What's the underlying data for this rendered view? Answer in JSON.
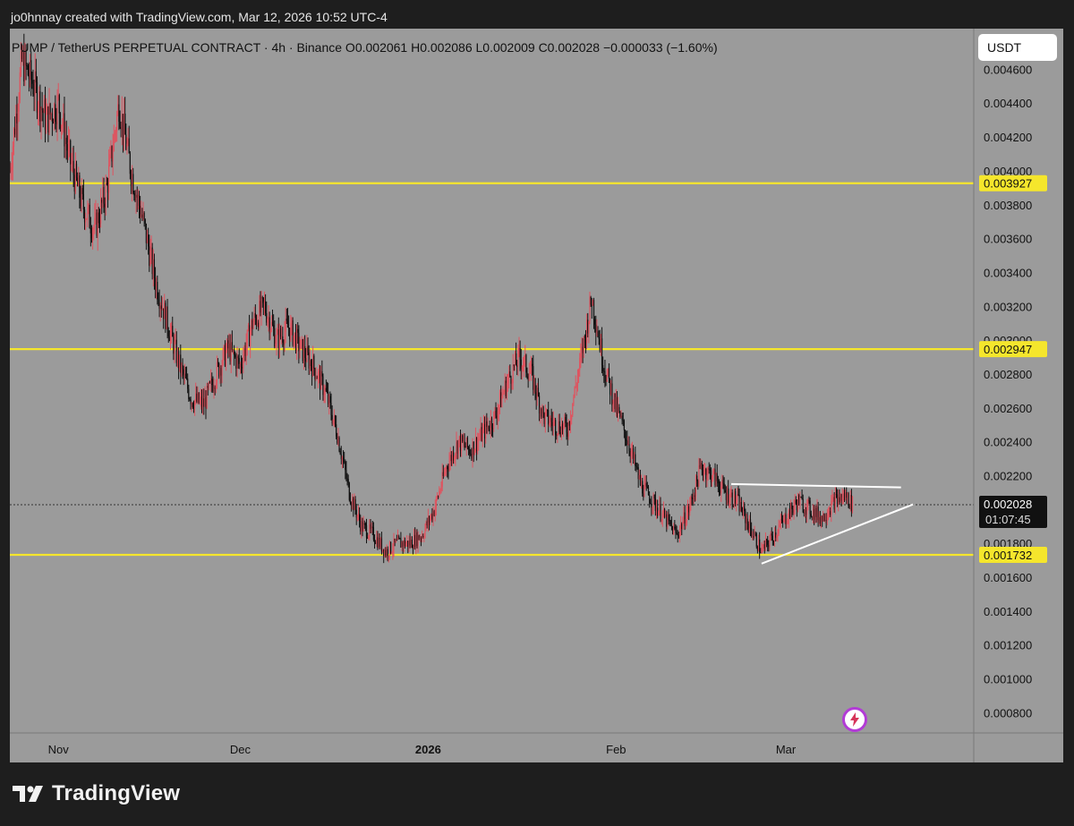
{
  "header": {
    "text": "jo0hnnay created with TradingView.com, Mar 12, 2026 10:52 UTC-4"
  },
  "symbol_info": {
    "text": "PUMP / TetherUS PERPETUAL CONTRACT · 4h · Binance  O0.002061  H0.002086  L0.002009  C0.002028  −0.000033 (−1.60%)"
  },
  "currency": "USDT",
  "footer": {
    "brand": "TradingView"
  },
  "colors": {
    "background": "#9b9b9b",
    "bull": "#e0525e",
    "bear": "#111111",
    "level": "#f5e62c",
    "trendline": "#ffffff"
  },
  "icons": {
    "bolt": "bolt-icon",
    "logo": "tradingview-logo-icon"
  },
  "chart_data": {
    "type": "candlestick",
    "timeframe": "4h",
    "y_tick_labels": [
      "0.004600",
      "0.004400",
      "0.004200",
      "0.004000",
      "0.003800",
      "0.003600",
      "0.003400",
      "0.003200",
      "0.003000",
      "0.002800",
      "0.002600",
      "0.002400",
      "0.002200",
      "0.001800",
      "0.001600",
      "0.001400",
      "0.001200",
      "0.001000",
      "0.000800"
    ],
    "ylim": [
      0.00068,
      0.00484
    ],
    "x_tick_labels": [
      {
        "label": "Nov",
        "date": "2025-11-01",
        "bold": false
      },
      {
        "label": "Dec",
        "date": "2025-12-01",
        "bold": false
      },
      {
        "label": "2026",
        "date": "2026-01-01",
        "bold": true
      },
      {
        "label": "Feb",
        "date": "2026-02-01",
        "bold": false
      },
      {
        "label": "Mar",
        "date": "2026-03-01",
        "bold": false
      }
    ],
    "xlim": [
      "2025-10-24",
      "2026-04-01"
    ],
    "horizontal_levels": [
      {
        "value": 0.003927,
        "label": "0.003927"
      },
      {
        "value": 0.002947,
        "label": "0.002947"
      },
      {
        "value": 0.001732,
        "label": "0.001732"
      }
    ],
    "last_price": {
      "value": 0.002028,
      "label": "0.002028",
      "countdown": "01:07:45"
    },
    "trendlines": [
      {
        "from": [
          "2026-02-20",
          0.00215
        ],
        "to": [
          "2026-03-20",
          0.00213
        ]
      },
      {
        "from": [
          "2026-02-25",
          0.00168
        ],
        "to": [
          "2026-03-22",
          0.00203
        ]
      }
    ],
    "price_path": [
      [
        "2025-10-24",
        0.004
      ],
      [
        "2025-10-26",
        0.00465
      ],
      [
        "2025-10-28",
        0.0045
      ],
      [
        "2025-10-30",
        0.0043
      ],
      [
        "2025-11-01",
        0.0044
      ],
      [
        "2025-11-03",
        0.00405
      ],
      [
        "2025-11-05",
        0.0038
      ],
      [
        "2025-11-07",
        0.00365
      ],
      [
        "2025-11-09",
        0.0039
      ],
      [
        "2025-11-11",
        0.0044
      ],
      [
        "2025-11-13",
        0.004
      ],
      [
        "2025-11-15",
        0.0037
      ],
      [
        "2025-11-17",
        0.00335
      ],
      [
        "2025-11-19",
        0.0031
      ],
      [
        "2025-11-21",
        0.00285
      ],
      [
        "2025-11-23",
        0.00265
      ],
      [
        "2025-11-25",
        0.00262
      ],
      [
        "2025-11-27",
        0.0028
      ],
      [
        "2025-11-29",
        0.00295
      ],
      [
        "2025-12-01",
        0.00285
      ],
      [
        "2025-12-03",
        0.0031
      ],
      [
        "2025-12-05",
        0.0032
      ],
      [
        "2025-12-07",
        0.003
      ],
      [
        "2025-12-09",
        0.00308
      ],
      [
        "2025-12-11",
        0.00295
      ],
      [
        "2025-12-13",
        0.00285
      ],
      [
        "2025-12-15",
        0.0027
      ],
      [
        "2025-12-17",
        0.00245
      ],
      [
        "2025-12-19",
        0.0021
      ],
      [
        "2025-12-21",
        0.0019
      ],
      [
        "2025-12-23",
        0.00185
      ],
      [
        "2025-12-25",
        0.00175
      ],
      [
        "2025-12-27",
        0.0018
      ],
      [
        "2025-12-29",
        0.0018
      ],
      [
        "2025-12-31",
        0.00185
      ],
      [
        "2026-01-02",
        0.002
      ],
      [
        "2026-01-04",
        0.00225
      ],
      [
        "2026-01-06",
        0.0024
      ],
      [
        "2026-01-08",
        0.00235
      ],
      [
        "2026-01-10",
        0.00245
      ],
      [
        "2026-01-12",
        0.00255
      ],
      [
        "2026-01-14",
        0.00275
      ],
      [
        "2026-01-16",
        0.0029
      ],
      [
        "2026-01-18",
        0.0028
      ],
      [
        "2026-01-20",
        0.00255
      ],
      [
        "2026-01-22",
        0.0025
      ],
      [
        "2026-01-24",
        0.00248
      ],
      [
        "2026-01-26",
        0.00285
      ],
      [
        "2026-01-28",
        0.00325
      ],
      [
        "2026-01-30",
        0.00285
      ],
      [
        "2026-02-01",
        0.0026
      ],
      [
        "2026-02-03",
        0.0024
      ],
      [
        "2026-02-05",
        0.00215
      ],
      [
        "2026-02-07",
        0.00205
      ],
      [
        "2026-02-09",
        0.00195
      ],
      [
        "2026-02-11",
        0.00185
      ],
      [
        "2026-02-13",
        0.002
      ],
      [
        "2026-02-15",
        0.00225
      ],
      [
        "2026-02-17",
        0.0022
      ],
      [
        "2026-02-19",
        0.0021
      ],
      [
        "2026-02-21",
        0.00205
      ],
      [
        "2026-02-23",
        0.0019
      ],
      [
        "2026-02-25",
        0.00175
      ],
      [
        "2026-02-27",
        0.00185
      ],
      [
        "2026-03-01",
        0.00195
      ],
      [
        "2026-03-03",
        0.00205
      ],
      [
        "2026-03-05",
        0.002
      ],
      [
        "2026-03-07",
        0.00195
      ],
      [
        "2026-03-09",
        0.00205
      ],
      [
        "2026-03-11",
        0.00208
      ],
      [
        "2026-03-12",
        0.002028
      ]
    ]
  }
}
